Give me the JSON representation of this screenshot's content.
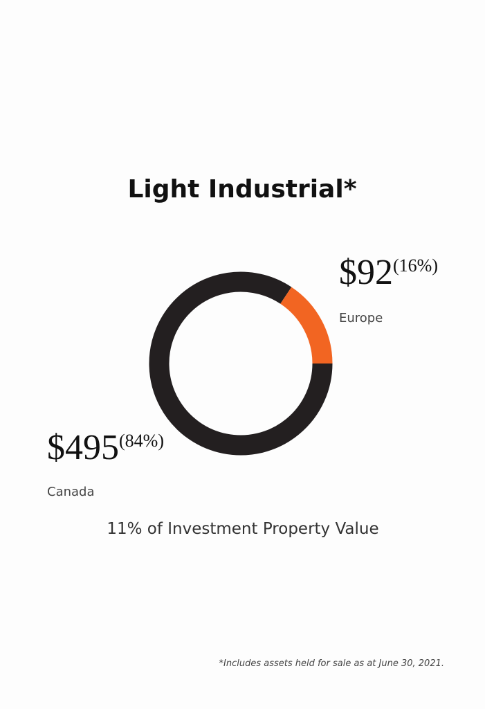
{
  "chart_data": {
    "type": "donut",
    "title": "Light Industrial*",
    "categories": [
      "Canada",
      "Europe"
    ],
    "values": [
      495,
      92
    ],
    "value_labels": [
      "$495",
      "$92"
    ],
    "share_labels": [
      "(84%)",
      "(16%)"
    ],
    "colors": [
      "#231f20",
      "#f26522"
    ],
    "subtitle": "11% of Investment Property Value",
    "footnote": "*Includes assets held for sale as at June 30, 2021."
  }
}
